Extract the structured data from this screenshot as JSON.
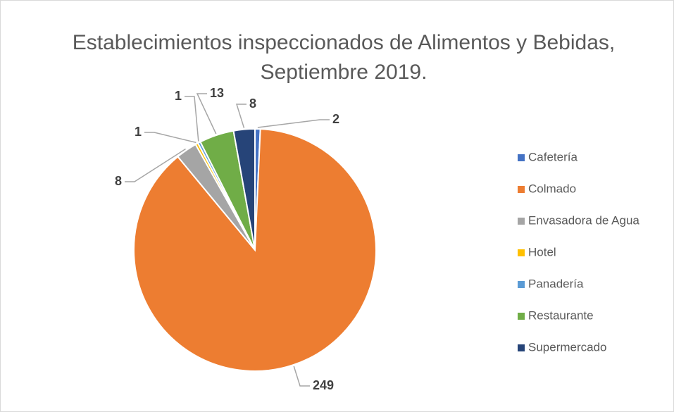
{
  "chart_data": {
    "type": "pie",
    "title": "Establecimientos inspeccionados de Alimentos y Bebidas, Septiembre 2019.",
    "categories": [
      "Cafetería",
      "Colmado",
      "Envasadora de Agua",
      "Hotel",
      "Panadería",
      "Restaurante",
      "Supermercado"
    ],
    "values": [
      2,
      249,
      8,
      1,
      1,
      13,
      8
    ],
    "colors": [
      "#4472c4",
      "#ed7d31",
      "#a5a5a5",
      "#ffc000",
      "#5b9bd5",
      "#70ad47",
      "#264478"
    ],
    "legend": "right"
  }
}
